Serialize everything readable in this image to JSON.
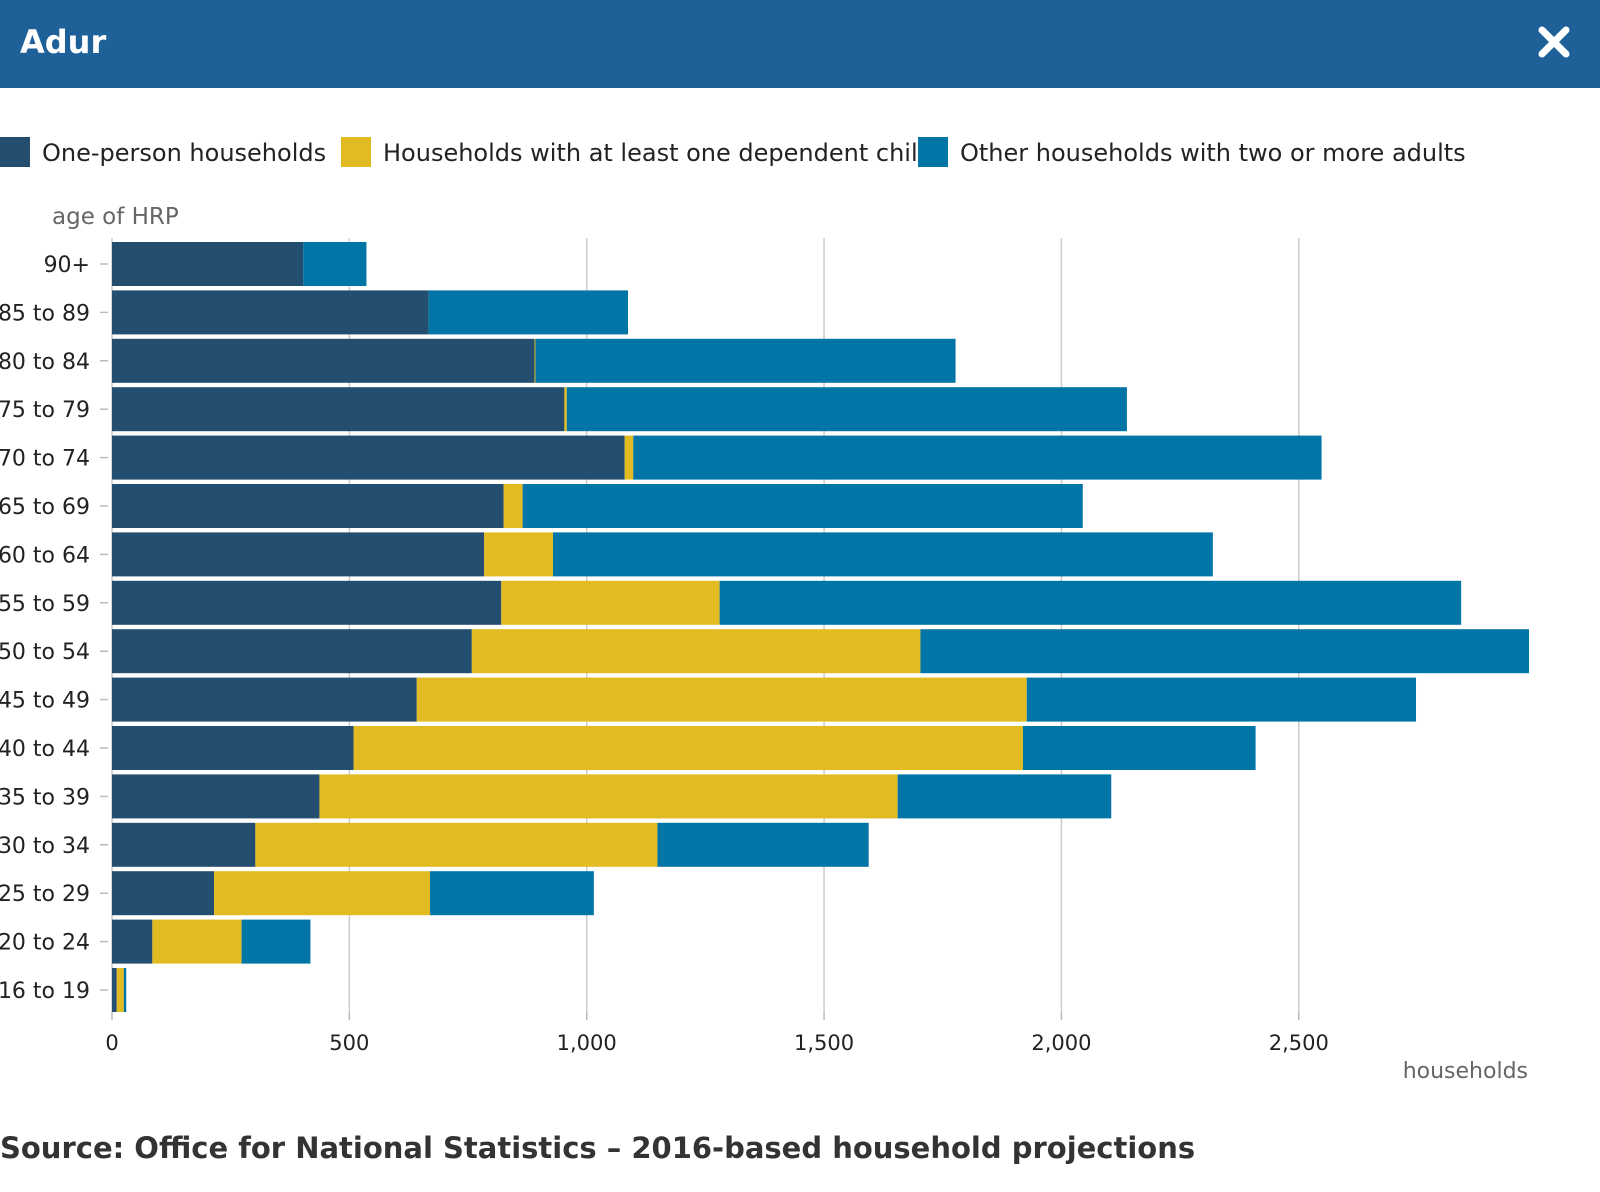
{
  "header": {
    "title": "Adur",
    "close_icon": "close-icon"
  },
  "footer": {
    "source": "Source: Office for National Statistics – 2016-based household projections"
  },
  "colors": {
    "header_bg": "#1e6199",
    "one_person": "#244e6f",
    "dependent_child": "#e2ba22",
    "other_adults": "#0075a6"
  },
  "chart_data": {
    "type": "bar",
    "orientation": "horizontal",
    "stacked": true,
    "xlabel": "households",
    "ylabel": "age of HRP",
    "xlim": [
      0,
      2985
    ],
    "x_ticks": [
      {
        "value": 0,
        "label": "0"
      },
      {
        "value": 500,
        "label": "500"
      },
      {
        "value": 1000,
        "label": "1,000"
      },
      {
        "value": 1500,
        "label": "1,500"
      },
      {
        "value": 2000,
        "label": "2,000"
      },
      {
        "value": 2500,
        "label": "2,500"
      }
    ],
    "grid": true,
    "legend": "top",
    "categories": [
      "90+",
      "85 to 89",
      "80 to 84",
      "75 to 79",
      "70 to 74",
      "65 to 69",
      "60 to 64",
      "55 to 59",
      "50 to 54",
      "45 to 49",
      "40 to 44",
      "35 to 39",
      "30 to 34",
      "25 to 29",
      "20 to 24",
      "16 to 19"
    ],
    "series": [
      {
        "name": "One-person households",
        "color": "#244e6f",
        "values": [
          403,
          667,
          890,
          953,
          1080,
          825,
          784,
          820,
          758,
          642,
          509,
          437,
          302,
          215,
          85,
          10
        ]
      },
      {
        "name": "Households with at least one dependent child",
        "color": "#e2ba22",
        "values": [
          0,
          0,
          2,
          5,
          18,
          40,
          145,
          460,
          945,
          1285,
          1410,
          1218,
          847,
          455,
          188,
          15
        ]
      },
      {
        "name": "Other households with two or more adults",
        "color": "#0075a6",
        "values": [
          133,
          420,
          885,
          1180,
          1450,
          1180,
          1390,
          1562,
          1282,
          820,
          490,
          450,
          445,
          345,
          145,
          5
        ]
      }
    ]
  }
}
